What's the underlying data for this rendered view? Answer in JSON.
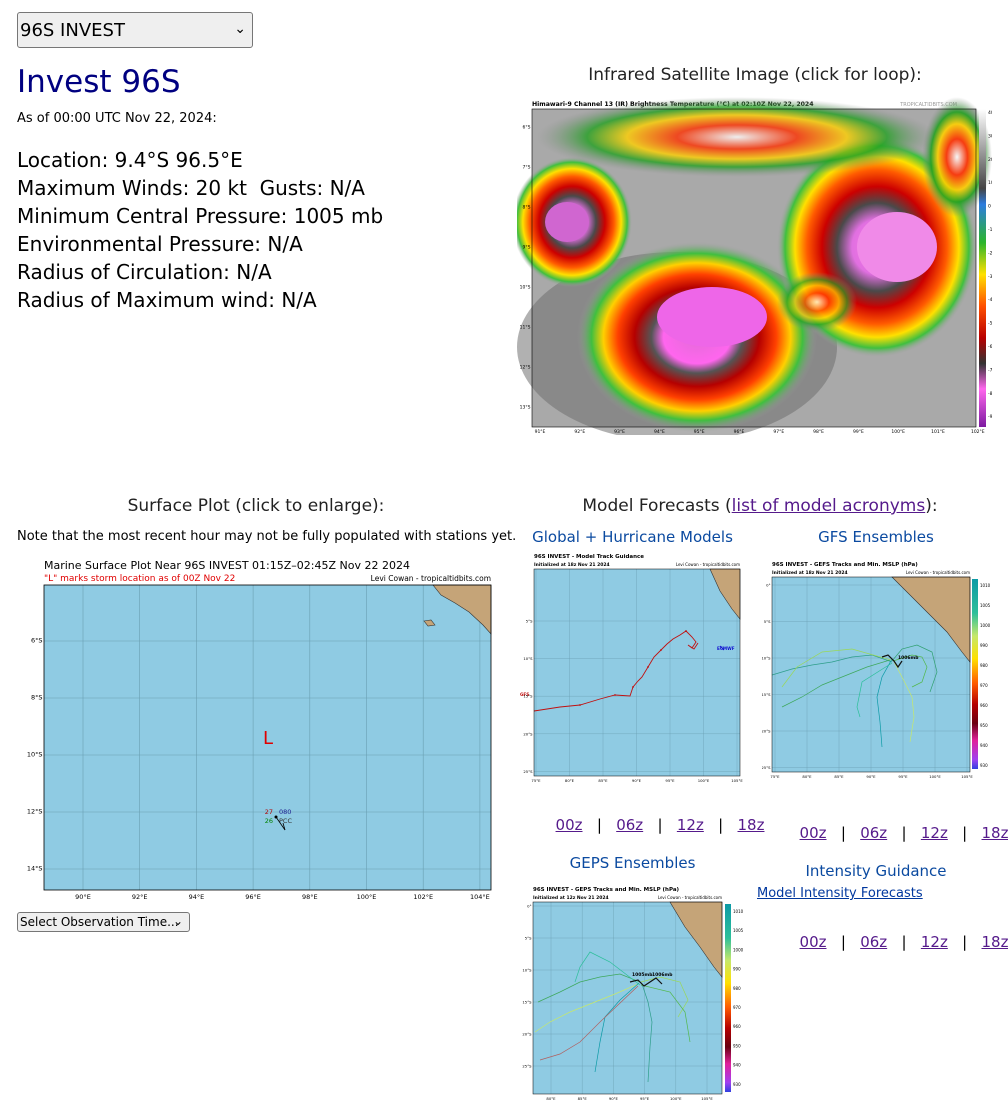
{
  "storm_select": {
    "value": "96S INVEST",
    "chevron": "chevron-down-icon"
  },
  "storm": {
    "title": "Invest 96S",
    "as_of": "As of 00:00 UTC Nov 22, 2024:",
    "location": "Location: 9.4°S 96.5°E",
    "winds": "Maximum Winds: 20 kt  Gusts: N/A",
    "pressure": "Minimum Central Pressure: 1005 mb",
    "env_pressure": "Environmental Pressure: N/A",
    "radius_circ": "Radius of Circulation: N/A",
    "radius_max": "Radius of Maximum wind: N/A"
  },
  "satellite": {
    "heading": "Infrared Satellite Image (click for loop):",
    "image_title": "Himawari-9 Channel 13 (IR) Brightness Temperature (°C) at 02:10Z Nov 22, 2024",
    "credit": "TROPICALTIDBITS.COM",
    "lat_labels": [
      "6°S",
      "7°S",
      "8°S",
      "9°S",
      "10°S",
      "11°S",
      "12°S",
      "13°S"
    ],
    "lon_labels": [
      "91°E",
      "92°E",
      "93°E",
      "94°E",
      "95°E",
      "96°E",
      "97°E",
      "98°E",
      "99°E",
      "100°E",
      "101°E",
      "102°E"
    ],
    "scale_labels": [
      "40",
      "30",
      "20",
      "10",
      "0",
      "-10",
      "-20",
      "-30",
      "-40",
      "-50",
      "-60",
      "-70",
      "-80",
      "-90"
    ]
  },
  "surface": {
    "heading": "Surface Plot (click to enlarge):",
    "note": "Note that the most recent hour may not be fully populated with stations yet.",
    "plot_title": "Marine Surface Plot Near 96S INVEST 01:15Z–02:45Z Nov 22 2024",
    "plot_subtitle": "\"L\" marks storm location as of 00Z Nov 22",
    "credit": "Levi Cowan - tropicaltidbits.com",
    "storm_marker": "L",
    "lat_labels": [
      "6°S",
      "8°S",
      "10°S",
      "12°S",
      "14°S"
    ],
    "lon_labels": [
      "90°E",
      "92°E",
      "94°E",
      "96°E",
      "98°E",
      "100°E",
      "102°E",
      "104°E"
    ],
    "station": {
      "temp": "27",
      "dew": "26",
      "pressure": "080",
      "id": "PCC"
    },
    "obs_select": "Select Observation Time...",
    "obs_chevron": "chevron-down-icon"
  },
  "models": {
    "heading_prefix": "Model Forecasts (",
    "heading_link": "list of model acronyms",
    "heading_suffix": "):",
    "global": {
      "title": "Global + Hurricane Models",
      "chart_title": "96S INVEST - Model Track Guidance",
      "chart_init": "Initialized at 18z Nov 21 2024",
      "credit": "Levi Cowan - tropicaltidbits.com",
      "labels": [
        "GFS",
        "ECMWF"
      ],
      "lat_labels": [
        "5°S",
        "10°S",
        "15°S",
        "20°S",
        "25°S"
      ],
      "lon_labels": [
        "75°E",
        "80°E",
        "85°E",
        "90°E",
        "95°E",
        "100°E",
        "105°E"
      ]
    },
    "gefs": {
      "title": "GFS Ensembles",
      "chart_title": "96S INVEST - GEFS Tracks and Min. MSLP (hPa)",
      "chart_init": "Initialized at 18z Nov 21 2024",
      "credit": "Levi Cowan - tropicaltidbits.com",
      "center_label": "1006mb",
      "lat_labels": [
        "0°",
        "5°S",
        "10°S",
        "15°S",
        "20°S",
        "25°S"
      ],
      "lon_labels": [
        "75°E",
        "80°E",
        "85°E",
        "90°E",
        "95°E",
        "100°E",
        "105°E"
      ],
      "scale_labels": [
        "1010",
        "1005",
        "1000",
        "990",
        "980",
        "970",
        "960",
        "950",
        "940",
        "930"
      ]
    },
    "geps": {
      "title": "GEPS Ensembles",
      "chart_title": "96S INVEST - GEPS Tracks and Min. MSLP (hPa)",
      "chart_init": "Initialized at 12z Nov 21 2024",
      "credit": "Levi Cowan - tropicaltidbits.com",
      "center_labels": [
        "1005mb",
        "1006mb"
      ],
      "lat_labels": [
        "0°",
        "5°S",
        "10°S",
        "15°S",
        "20°S",
        "25°S"
      ],
      "lon_labels": [
        "80°E",
        "85°E",
        "90°E",
        "95°E",
        "100°E",
        "105°E"
      ],
      "scale_labels": [
        "1010",
        "1005",
        "1000",
        "990",
        "980",
        "970",
        "960",
        "950",
        "940",
        "930"
      ]
    },
    "intensity": {
      "title": "Intensity Guidance",
      "link": "Model Intensity Forecasts"
    },
    "runs": [
      "00z",
      "06z",
      "12z",
      "18z"
    ],
    "separator": "|"
  },
  "colors": {
    "title_navy": "#000080",
    "link_purple": "#551a8b",
    "link_blue": "#00379e",
    "ocean": "#8fcbe3",
    "land": "#c5a478",
    "storm_red": "#e00000"
  }
}
